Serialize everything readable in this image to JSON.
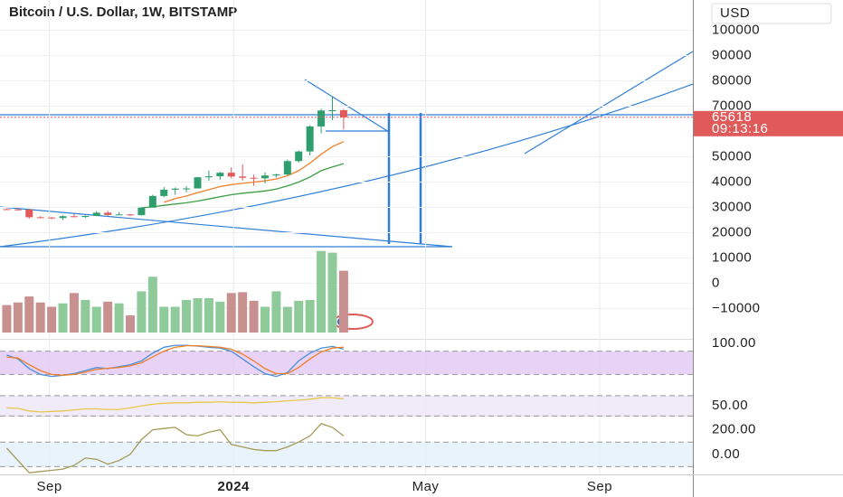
{
  "chart_data": [
    {
      "type": "candlestick",
      "title": "Bitcoin / U.S. Dollar, 1W, BITSTAMP",
      "currency": "USD",
      "open": [
        29300,
        29200,
        29100,
        26100,
        26000,
        25800,
        26500,
        26200,
        26600,
        27900,
        27000,
        27200,
        26900,
        29900,
        34500,
        37000,
        37400,
        37500,
        41900,
        42300,
        43700,
        42200,
        41700,
        41500,
        42600,
        43000,
        48300,
        52100,
        62000,
        68300,
        68400
      ],
      "high": [
        29500,
        29700,
        29500,
        26500,
        26200,
        26800,
        27400,
        26900,
        28500,
        28600,
        28100,
        27400,
        30000,
        35000,
        38000,
        37900,
        38400,
        42000,
        44500,
        44000,
        45800,
        47000,
        42900,
        43800,
        43300,
        48900,
        52500,
        62500,
        69000,
        73800,
        68900
      ],
      "low": [
        29000,
        28700,
        25500,
        25800,
        25300,
        25000,
        26000,
        25800,
        26500,
        26600,
        26900,
        26500,
        26800,
        29800,
        34000,
        35000,
        35900,
        37500,
        40500,
        40900,
        41500,
        40600,
        38500,
        39500,
        41800,
        42600,
        47700,
        50500,
        59300,
        64500,
        60800
      ],
      "close": [
        29200,
        29100,
        26100,
        26000,
        25800,
        26500,
        26200,
        26600,
        27900,
        27000,
        27200,
        26900,
        29900,
        34500,
        37000,
        37400,
        37500,
        41900,
        42300,
        43700,
        42200,
        41700,
        41500,
        42600,
        43000,
        48300,
        52100,
        62000,
        68300,
        68400,
        65618
      ],
      "volume": [
        32,
        35,
        42,
        35,
        30,
        34,
        46,
        38,
        30,
        36,
        34,
        20,
        48,
        65,
        30,
        30,
        38,
        40,
        40,
        36,
        46,
        47,
        37,
        30,
        48,
        30,
        37,
        38,
        95,
        93,
        72
      ],
      "up_color": "#2e9e6e",
      "down_color": "#e05a5a",
      "up_volume_color": "#8fca9b",
      "down_volume_color": "#c99090",
      "series": [
        {
          "color": "#f0802a",
          "values": [
            null,
            null,
            null,
            null,
            null,
            null,
            null,
            null,
            null,
            null,
            null,
            null,
            null,
            null,
            32000,
            33500,
            34500,
            35800,
            37000,
            38200,
            39000,
            39500,
            40000,
            40500,
            41200,
            42500,
            44500,
            47500,
            51000,
            54000,
            56000
          ]
        },
        {
          "color": "#3f9e45",
          "values": [
            null,
            null,
            null,
            null,
            null,
            null,
            null,
            null,
            null,
            null,
            null,
            null,
            29800,
            30200,
            30800,
            31300,
            31800,
            32500,
            33300,
            34200,
            35000,
            35600,
            36000,
            36500,
            37200,
            38500,
            40000,
            42000,
            44500,
            46000,
            47300
          ]
        }
      ],
      "last_price": 65618,
      "countdown": "09:13:16",
      "xlim": [
        -0.6,
        61.1
      ],
      "xticks": [
        {
          "value": 3.8,
          "label": "Sep"
        },
        {
          "value": 20.2,
          "label": "2024"
        },
        {
          "value": 37.3,
          "label": "May"
        },
        {
          "value": 52.8,
          "label": "Sep"
        }
      ],
      "ylim": [
        -22000,
        112000
      ],
      "yticks": [
        {
          "value": -10000,
          "label": "−10000"
        },
        0,
        10000,
        20000,
        30000,
        40000,
        50000,
        70000,
        80000,
        90000,
        100000
      ],
      "grid": true
    },
    {
      "type": "line",
      "ylim": [
        0,
        100
      ],
      "yticks": [
        {
          "value": 100,
          "label": "100.00"
        }
      ],
      "band": [
        20,
        80
      ],
      "band_color": "#e2c8f5",
      "series": [
        {
          "color": "#4a90d9",
          "values": [
            70,
            60,
            35,
            20,
            15,
            18,
            22,
            30,
            38,
            35,
            40,
            45,
            55,
            75,
            90,
            95,
            95,
            93,
            90,
            88,
            80,
            60,
            40,
            22,
            15,
            25,
            55,
            75,
            88,
            92,
            85
          ]
        },
        {
          "color": "#f0802a",
          "values": [
            65,
            62,
            45,
            30,
            20,
            18,
            20,
            26,
            33,
            36,
            38,
            42,
            50,
            65,
            80,
            90,
            94,
            94,
            92,
            90,
            85,
            72,
            55,
            35,
            22,
            22,
            38,
            60,
            78,
            88,
            90
          ]
        }
      ]
    },
    {
      "type": "line",
      "ylim": [
        20,
        100
      ],
      "yticks": [
        {
          "value": 50,
          "label": "50.00"
        }
      ],
      "band": [
        30,
        70
      ],
      "band_color": "#ece6f8",
      "series": [
        {
          "color": "#e8c84a",
          "values": [
            46,
            45,
            40,
            38,
            39,
            40,
            42,
            44,
            44,
            43,
            43,
            46,
            50,
            53,
            55,
            56,
            56,
            57,
            57,
            58,
            57,
            57,
            56,
            57,
            58,
            60,
            61,
            63,
            66,
            66,
            64
          ]
        }
      ]
    },
    {
      "type": "line",
      "ylim": [
        -200,
        300
      ],
      "yticks": [
        {
          "value": 200,
          "label": "200.00"
        },
        {
          "value": 0,
          "label": "0.00"
        }
      ],
      "band": [
        -100,
        100
      ],
      "band_color": "#e3f0fb",
      "series": [
        {
          "color": "#a59a57",
          "values": [
            50,
            -50,
            -150,
            -140,
            -130,
            -120,
            -90,
            -30,
            -40,
            -80,
            -50,
            0,
            120,
            200,
            210,
            220,
            160,
            150,
            180,
            200,
            80,
            60,
            40,
            30,
            30,
            60,
            100,
            150,
            250,
            220,
            150
          ]
        }
      ]
    }
  ]
}
